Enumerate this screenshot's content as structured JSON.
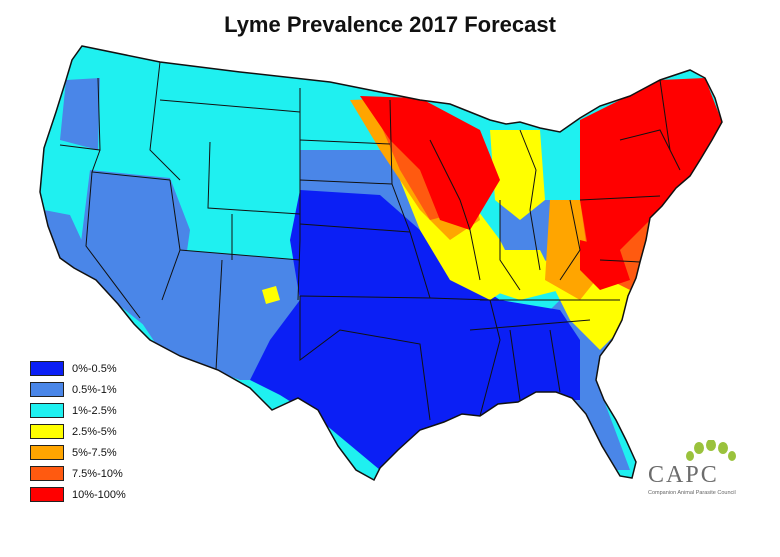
{
  "title": "Lyme Prevalence 2017 Forecast",
  "legend": {
    "items": [
      {
        "label": "0%-0.5%",
        "color": "#0b1ff5"
      },
      {
        "label": "0.5%-1%",
        "color": "#4a86e8"
      },
      {
        "label": "1%-2.5%",
        "color": "#1ff0f0"
      },
      {
        "label": "2.5%-5%",
        "color": "#ffff00"
      },
      {
        "label": "5%-7.5%",
        "color": "#ffa500"
      },
      {
        "label": "7.5%-10%",
        "color": "#ff5a10"
      },
      {
        "label": "10%-100%",
        "color": "#ff0000"
      }
    ]
  },
  "logo": {
    "text": "CAPC",
    "subtitle": "Companion Animal Parasite Council",
    "color": "#9ac23c"
  }
}
